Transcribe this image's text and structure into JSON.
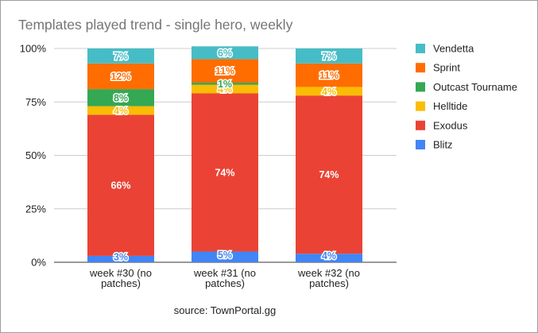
{
  "chart_data": {
    "type": "bar",
    "stacked": true,
    "percent_stacked": true,
    "title": "Templates played trend - single hero, weekly",
    "source": "source: TownPortal.gg",
    "categories": [
      [
        "week #30 (no",
        "patches)"
      ],
      [
        "week #31 (no",
        "patches)"
      ],
      [
        "week #32 (no",
        "patches)"
      ]
    ],
    "ylim": [
      0,
      1
    ],
    "yticks": [
      "0%",
      "25%",
      "50%",
      "75%",
      "100%"
    ],
    "grid": true,
    "legend_position": "right",
    "series": [
      {
        "name": "Blitz",
        "color": "#4285f4",
        "values": [
          0.03,
          0.05,
          0.04
        ],
        "labels": [
          "3%",
          "5%",
          "4%"
        ]
      },
      {
        "name": "Exodus",
        "color": "#ea4335",
        "values": [
          0.66,
          0.74,
          0.74
        ],
        "labels": [
          "66%",
          "74%",
          "74%"
        ]
      },
      {
        "name": "Helltide",
        "color": "#fbbc04",
        "values": [
          0.04,
          0.04,
          0.04
        ],
        "labels": [
          "4%",
          "4%",
          "4%"
        ]
      },
      {
        "name": "Outcast Tourname",
        "color": "#34a853",
        "values": [
          0.08,
          0.01,
          0.0
        ],
        "labels": [
          "8%",
          "1%",
          ""
        ]
      },
      {
        "name": "Sprint",
        "color": "#ff6d01",
        "values": [
          0.12,
          0.11,
          0.11
        ],
        "labels": [
          "12%",
          "11%",
          "11%"
        ]
      },
      {
        "name": "Vendetta",
        "color": "#46bdc6",
        "values": [
          0.07,
          0.06,
          0.07
        ],
        "labels": [
          "7%",
          "6%",
          "7%"
        ]
      }
    ]
  }
}
